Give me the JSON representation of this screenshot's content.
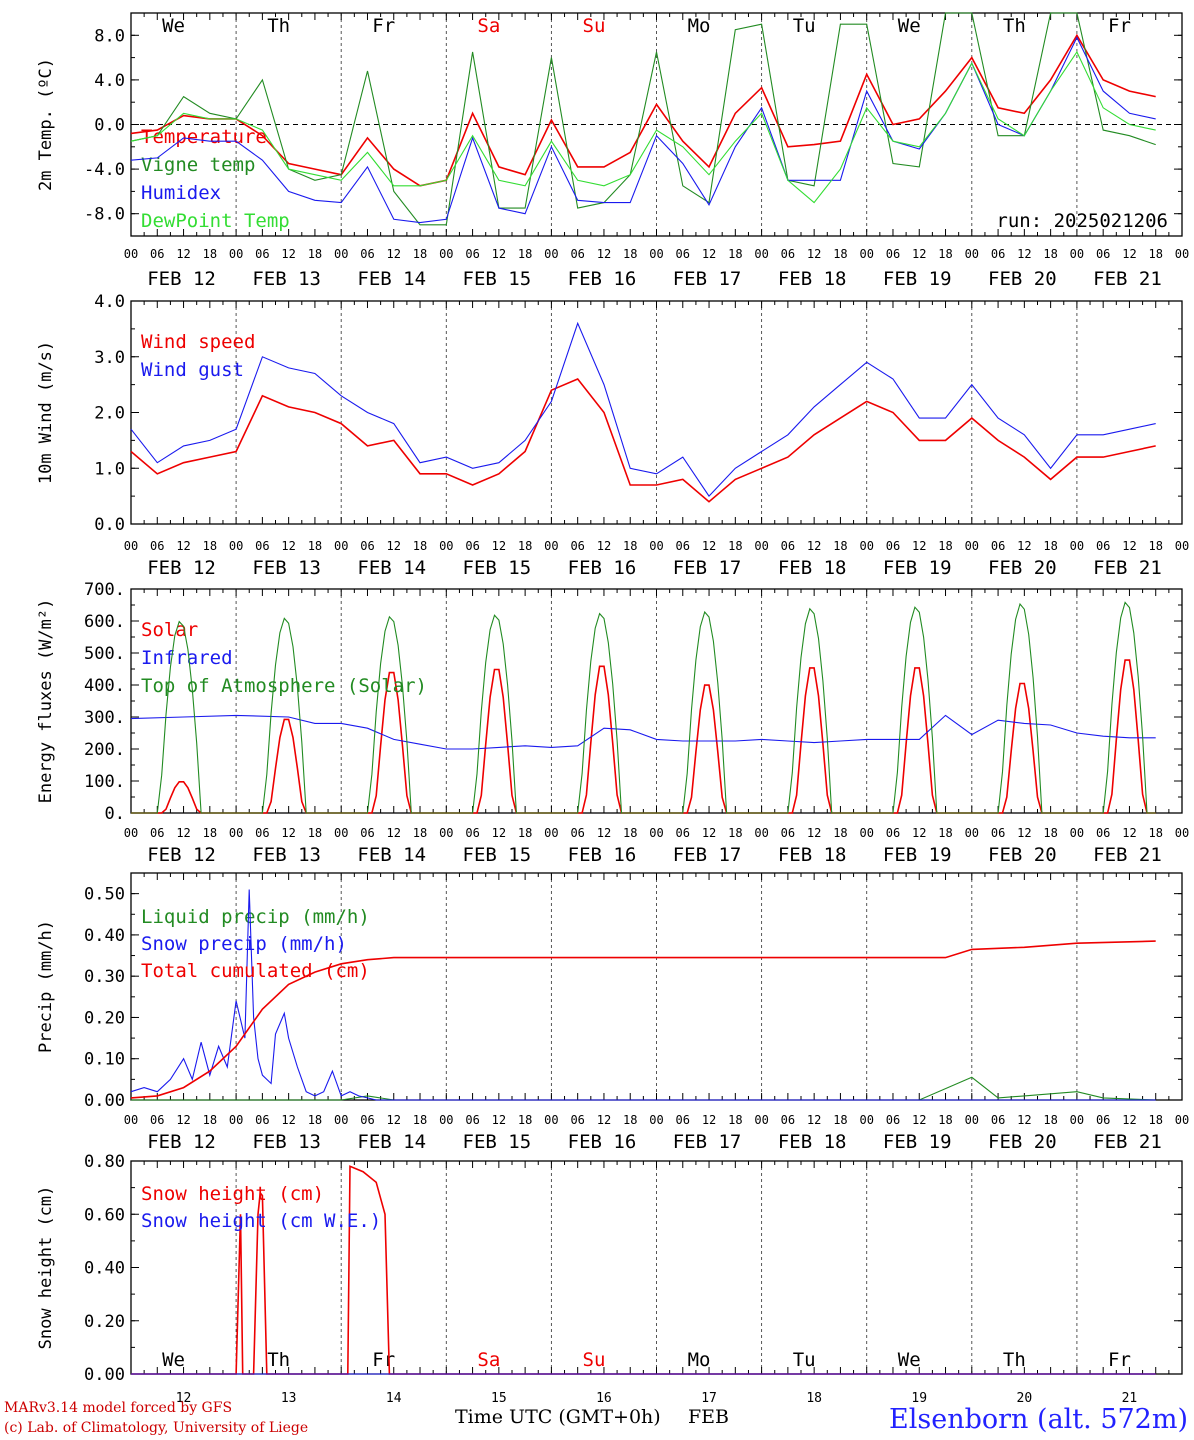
{
  "colors": {
    "red": "#ee0000",
    "green": "#228b22",
    "blue": "#1a1aee",
    "lightgreen": "#33dd33",
    "title_blue": "#2222ff",
    "footer_red": "#cc0000"
  },
  "chart_data": [
    {
      "type": "line",
      "ylabel": "2m Temp. (ºC)",
      "ylim": [
        -10,
        10
      ],
      "ytick_labels": [
        "-8.0",
        "-4.0",
        "0.0",
        "4.0",
        "8.0"
      ],
      "day_names": [
        "We",
        "Th",
        "Fr",
        "Sa",
        "Su",
        "Mo",
        "Tu",
        "We",
        "Th",
        "Fr"
      ],
      "annotation": "run: 2025021206",
      "series": [
        {
          "name": "Temperature",
          "color": "red",
          "x": [
            0,
            6,
            12,
            18,
            24,
            30,
            36,
            42,
            48,
            54,
            60,
            66,
            72,
            78,
            84,
            90,
            96,
            102,
            108,
            114,
            120,
            126,
            132,
            138,
            144,
            150,
            156,
            162,
            168,
            174,
            180,
            186,
            192,
            198,
            204,
            210,
            216,
            222,
            228,
            234
          ],
          "values": [
            -0.8,
            -0.5,
            0.8,
            0.5,
            0.5,
            -1,
            -3.5,
            -4,
            -4.5,
            -1.2,
            -4,
            -5.5,
            -5,
            1,
            -3.8,
            -4.5,
            0.4,
            -3.8,
            -3.8,
            -2.5,
            1.8,
            -1.5,
            -3.8,
            1,
            3.3,
            -2,
            -1.8,
            -1.5,
            4.5,
            0,
            0.5,
            3,
            6,
            1.5,
            1,
            4,
            8,
            4,
            3,
            2.5
          ]
        },
        {
          "name": "Vigne temp",
          "color": "green",
          "x": [
            0,
            6,
            12,
            18,
            24,
            30,
            36,
            42,
            48,
            54,
            60,
            66,
            72,
            78,
            84,
            90,
            96,
            102,
            108,
            114,
            120,
            126,
            132,
            138,
            144,
            150,
            156,
            162,
            168,
            174,
            180,
            186,
            192,
            198,
            204,
            210,
            216,
            222,
            228,
            234
          ],
          "values": [
            -1.5,
            -1,
            2.5,
            1,
            0.5,
            4,
            -4,
            -5,
            -4.5,
            4.8,
            -6,
            -9,
            -9,
            6.5,
            -7.5,
            -7.5,
            6,
            -7.5,
            -7,
            -4.5,
            6.5,
            -5.5,
            -7,
            8.5,
            9,
            -5,
            -5.5,
            9,
            9,
            -3.5,
            -3.8,
            10,
            10,
            -1,
            -1,
            10,
            10,
            -0.5,
            -1,
            -1.8
          ]
        },
        {
          "name": "Humidex",
          "color": "blue",
          "x": [
            0,
            6,
            12,
            18,
            24,
            30,
            36,
            42,
            48,
            54,
            60,
            66,
            72,
            78,
            84,
            90,
            96,
            102,
            108,
            114,
            120,
            126,
            132,
            138,
            144,
            150,
            156,
            162,
            168,
            174,
            180,
            186,
            192,
            198,
            204,
            210,
            216,
            222,
            228,
            234
          ],
          "values": [
            -3.2,
            -3,
            -1.2,
            -1.5,
            -1.5,
            -3.2,
            -6,
            -6.8,
            -7,
            -3.8,
            -8.5,
            -8.8,
            -8.5,
            -1.2,
            -7.5,
            -8,
            -2,
            -6.8,
            -7,
            -7,
            -1,
            -3.5,
            -7.2,
            -2,
            1.5,
            -5,
            -5,
            -5,
            3,
            -1.5,
            -2.2,
            1,
            5.5,
            0,
            -1,
            3,
            7.8,
            3,
            1,
            0.5
          ]
        },
        {
          "name": "DewPoint Temp",
          "color": "lightgreen",
          "x": [
            0,
            6,
            12,
            18,
            24,
            30,
            36,
            42,
            48,
            54,
            60,
            66,
            72,
            78,
            84,
            90,
            96,
            102,
            108,
            114,
            120,
            126,
            132,
            138,
            144,
            150,
            156,
            162,
            168,
            174,
            180,
            186,
            192,
            198,
            204,
            210,
            216,
            222,
            228,
            234
          ],
          "values": [
            -1.5,
            -1,
            1,
            0.5,
            0.5,
            -0.5,
            -4,
            -4.5,
            -5,
            -2.5,
            -5.5,
            -5.5,
            -5,
            -1,
            -5,
            -5.5,
            -1.5,
            -5,
            -5.5,
            -4.5,
            -0.5,
            -2,
            -4.5,
            -1.5,
            1,
            -5,
            -7,
            -4,
            1.5,
            -1.5,
            -2,
            1,
            5.5,
            0.5,
            -1,
            3,
            6.5,
            1.5,
            0,
            -0.5
          ]
        }
      ]
    },
    {
      "type": "line",
      "ylabel": "10m Wind (m/s)",
      "ylim": [
        0,
        4
      ],
      "ytick_labels": [
        "0.0",
        "1.0",
        "2.0",
        "3.0",
        "4.0"
      ],
      "series": [
        {
          "name": "Wind speed",
          "color": "red",
          "x": [
            0,
            6,
            12,
            18,
            24,
            30,
            36,
            42,
            48,
            54,
            60,
            66,
            72,
            78,
            84,
            90,
            96,
            102,
            108,
            114,
            120,
            126,
            132,
            138,
            144,
            150,
            156,
            162,
            168,
            174,
            180,
            186,
            192,
            198,
            204,
            210,
            216,
            222,
            228,
            234
          ],
          "values": [
            1.3,
            0.9,
            1.1,
            1.2,
            1.3,
            2.3,
            2.1,
            2.0,
            1.8,
            1.4,
            1.5,
            0.9,
            0.9,
            0.7,
            0.9,
            1.3,
            2.4,
            2.6,
            2.0,
            0.7,
            0.7,
            0.8,
            0.4,
            0.8,
            1.0,
            1.2,
            1.6,
            1.9,
            2.2,
            2.0,
            1.5,
            1.5,
            1.9,
            1.5,
            1.2,
            0.8,
            1.2,
            1.2,
            1.3,
            1.4
          ]
        },
        {
          "name": "Wind gust",
          "color": "blue",
          "x": [
            0,
            6,
            12,
            18,
            24,
            30,
            36,
            42,
            48,
            54,
            60,
            66,
            72,
            78,
            84,
            90,
            96,
            102,
            108,
            114,
            120,
            126,
            132,
            138,
            144,
            150,
            156,
            162,
            168,
            174,
            180,
            186,
            192,
            198,
            204,
            210,
            216,
            222,
            228,
            234
          ],
          "values": [
            1.7,
            1.1,
            1.4,
            1.5,
            1.7,
            3.0,
            2.8,
            2.7,
            2.3,
            2.0,
            1.8,
            1.1,
            1.2,
            1.0,
            1.1,
            1.5,
            2.2,
            3.6,
            2.5,
            1.0,
            0.9,
            1.2,
            0.5,
            1.0,
            1.3,
            1.6,
            2.1,
            2.5,
            2.9,
            2.6,
            1.9,
            1.9,
            2.5,
            1.9,
            1.6,
            1.0,
            1.6,
            1.6,
            1.7,
            1.8
          ]
        }
      ]
    },
    {
      "type": "line",
      "ylabel": "Energy fluxes (W/m²)",
      "ylim": [
        0,
        700
      ],
      "ytick_labels": [
        "0.",
        "100.",
        "200.",
        "300.",
        "400.",
        "500.",
        "600.",
        "700."
      ],
      "series": [
        {
          "name": "Solar",
          "color": "red",
          "day_peaks": [
            100,
            300,
            450,
            460,
            470,
            410,
            465,
            465,
            415,
            490
          ]
        },
        {
          "name": "Infrared",
          "color": "blue",
          "x": [
            0,
            12,
            24,
            36,
            42,
            48,
            54,
            60,
            66,
            72,
            78,
            84,
            90,
            96,
            102,
            108,
            114,
            120,
            126,
            132,
            138,
            144,
            150,
            156,
            162,
            168,
            174,
            180,
            186,
            192,
            198,
            204,
            210,
            216,
            222,
            228,
            234
          ],
          "values": [
            295,
            300,
            305,
            300,
            280,
            280,
            265,
            230,
            215,
            200,
            200,
            205,
            210,
            205,
            210,
            265,
            260,
            230,
            225,
            225,
            225,
            230,
            225,
            220,
            225,
            230,
            230,
            230,
            305,
            245,
            290,
            280,
            275,
            250,
            240,
            235,
            235
          ]
        },
        {
          "name": "Top of Atmosphere (Solar)",
          "color": "green",
          "day_peaks": [
            600,
            610,
            615,
            620,
            625,
            630,
            640,
            645,
            655,
            660
          ]
        }
      ]
    },
    {
      "type": "line",
      "ylabel": "Precip (mm/h)",
      "ylim": [
        0,
        0.55
      ],
      "ytick_labels": [
        "0.00",
        "0.10",
        "0.20",
        "0.30",
        "0.40",
        "0.50"
      ],
      "series": [
        {
          "name": "Liquid precip (mm/h)",
          "color": "green",
          "x": [
            0,
            24,
            36,
            48,
            54,
            60,
            180,
            192,
            198,
            204,
            210,
            216,
            222,
            234
          ],
          "values": [
            0,
            0,
            0,
            0,
            0.01,
            0,
            0,
            0.055,
            0.005,
            0.01,
            0.015,
            0.02,
            0.005,
            0
          ]
        },
        {
          "name": "Snow precip (mm/h)",
          "color": "blue",
          "x": [
            0,
            3,
            6,
            9,
            12,
            14,
            16,
            18,
            20,
            22,
            24,
            26,
            27,
            28,
            29,
            30,
            31,
            32,
            33,
            35,
            36,
            38,
            40,
            42,
            44,
            46,
            48,
            50,
            52,
            54,
            56,
            58,
            60,
            234
          ],
          "values": [
            0.02,
            0.03,
            0.02,
            0.05,
            0.1,
            0.05,
            0.14,
            0.06,
            0.13,
            0.08,
            0.24,
            0.15,
            0.51,
            0.2,
            0.1,
            0.06,
            0.05,
            0.04,
            0.16,
            0.21,
            0.15,
            0.08,
            0.02,
            0.01,
            0.02,
            0.07,
            0.01,
            0.02,
            0.01,
            0.005,
            0,
            0,
            0,
            0
          ]
        },
        {
          "name": "Total cumulated (cm)",
          "color": "red",
          "x": [
            0,
            6,
            12,
            18,
            24,
            30,
            36,
            42,
            48,
            54,
            60,
            72,
            96,
            120,
            144,
            168,
            186,
            192,
            204,
            216,
            234
          ],
          "values": [
            0.005,
            0.01,
            0.03,
            0.07,
            0.13,
            0.22,
            0.28,
            0.31,
            0.33,
            0.34,
            0.345,
            0.345,
            0.345,
            0.345,
            0.345,
            0.345,
            0.345,
            0.365,
            0.37,
            0.38,
            0.385
          ]
        }
      ]
    },
    {
      "type": "line",
      "ylabel": "Snow height (cm)",
      "ylim": [
        0,
        0.8
      ],
      "ytick_labels": [
        "0.00",
        "0.20",
        "0.40",
        "0.60",
        "0.80"
      ],
      "xlabel": "Time UTC (GMT+0h)",
      "x_unit_label": "FEB",
      "day_numbers": [
        "12",
        "13",
        "14",
        "15",
        "16",
        "17",
        "18",
        "19",
        "20",
        "21"
      ],
      "day_names": [
        "We",
        "Th",
        "Fr",
        "Sa",
        "Su",
        "Mo",
        "Tu",
        "We",
        "Th",
        "Fr"
      ],
      "series": [
        {
          "name": "Snow height (cm)",
          "color": "red",
          "x": [
            0,
            24,
            25,
            25.5,
            26,
            27,
            28,
            29,
            29.5,
            30,
            31,
            32,
            33,
            36,
            40,
            48,
            49.5,
            50,
            53,
            56,
            58,
            59,
            60,
            234
          ],
          "values": [
            0,
            0,
            0.6,
            0,
            0,
            0,
            0,
            0.6,
            0.68,
            0.67,
            0,
            0,
            0,
            0,
            0,
            0,
            0,
            0.78,
            0.76,
            0.72,
            0.6,
            0,
            0,
            0
          ]
        },
        {
          "name": "Snow height (cm W.E.)",
          "color": "blue",
          "x": [
            0,
            234
          ],
          "values": [
            0,
            0
          ]
        }
      ]
    }
  ],
  "shared_x": {
    "hour_labels": [
      "00",
      "06",
      "12",
      "18"
    ],
    "final_label": "00",
    "date_labels": [
      "FEB 12",
      "FEB 13",
      "FEB 14",
      "FEB 15",
      "FEB 16",
      "FEB 17",
      "FEB 18",
      "FEB 19",
      "FEB 20",
      "FEB 21"
    ]
  },
  "footer": {
    "line1": "MARv3.14 model forced by GFS",
    "line2": "(c) Lab. of Climatology, University of Liege",
    "station": "Elsenborn (alt. 572m)"
  }
}
